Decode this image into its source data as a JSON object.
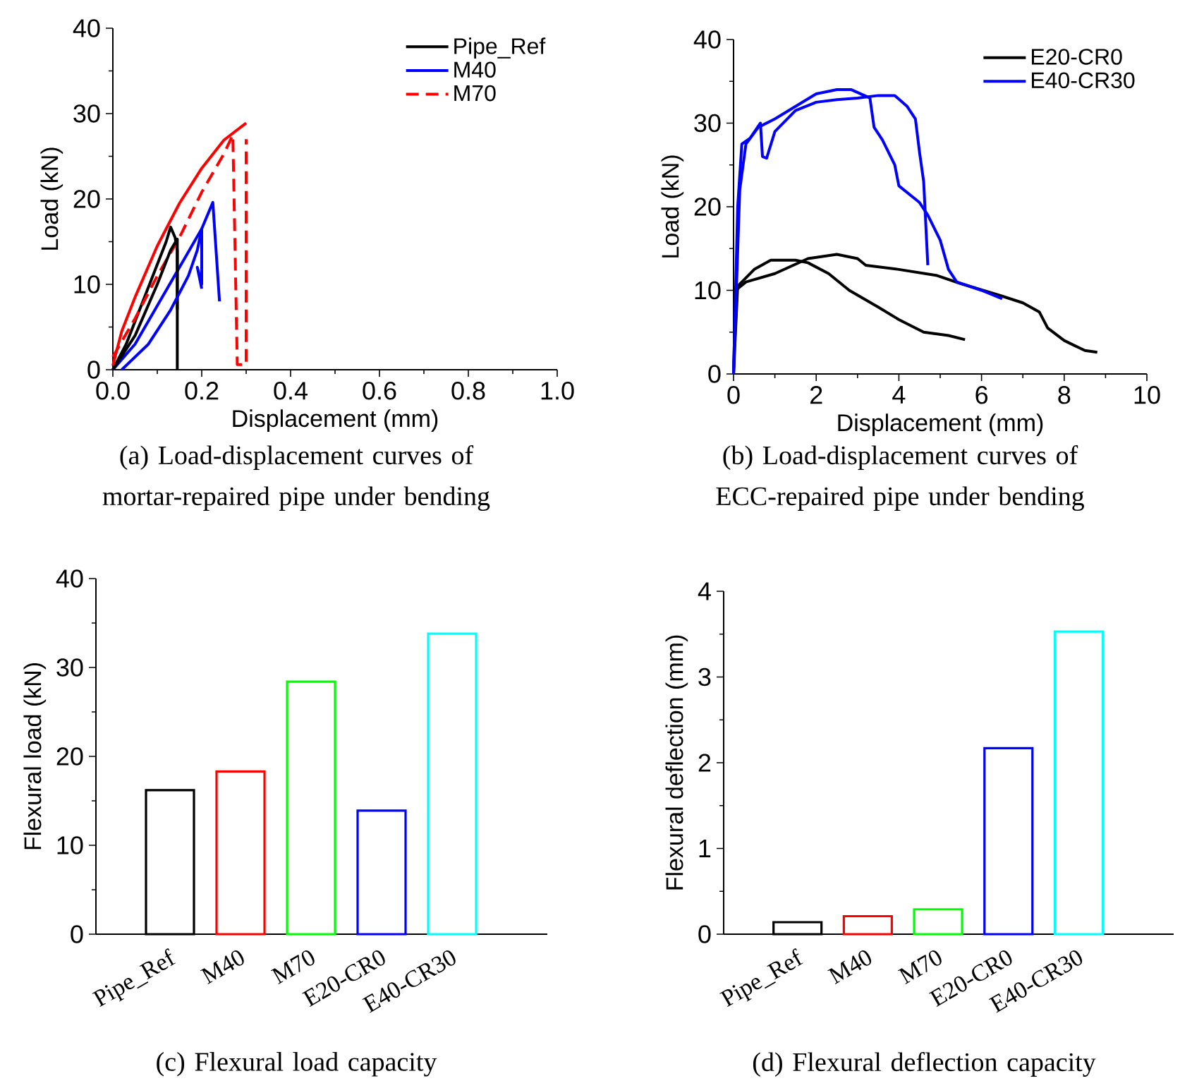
{
  "chart_data": [
    {
      "type": "line",
      "title": "(a) Load-displacement curves of mortar-repaired pipe under bending",
      "xlabel": "Displacement (mm)",
      "ylabel": "Load (kN)",
      "xlim": [
        0,
        1
      ],
      "ylim": [
        0,
        40
      ],
      "xticks": [
        {
          "value": 0,
          "label": "0.0"
        },
        {
          "value": 0.2,
          "label": "0.2"
        },
        {
          "value": 0.4,
          "label": "0.4"
        },
        {
          "value": 0.6,
          "label": "0.6"
        },
        {
          "value": 0.8,
          "label": "0.8"
        },
        {
          "value": 1,
          "label": "1.0"
        }
      ],
      "yticks": [
        0,
        10,
        20,
        30,
        40
      ],
      "legend": "top right",
      "series": [
        {
          "name": "Pipe_Ref",
          "color": "#000000",
          "line_style": "solid",
          "x": [
            0,
            0.03,
            0.06,
            0.09,
            0.12,
            0.13,
            0.14,
            0.145,
            0.145
          ],
          "values": [
            0,
            3,
            7,
            11,
            15,
            16.7,
            15.5,
            14,
            0
          ]
        },
        {
          "name": "M40",
          "color": "#0000ff",
          "line_style": "solid",
          "x": [
            0,
            0.05,
            0.1,
            0.15,
            0.2,
            0.225,
            0.24
          ],
          "values": [
            0,
            3,
            7.5,
            12,
            16.5,
            19.6,
            8
          ]
        },
        {
          "name": "M70",
          "color": "#ff0000",
          "line_style": "dashed",
          "x": [
            0,
            0.05,
            0.1,
            0.15,
            0.2,
            0.25,
            0.27,
            0.28,
            0.3,
            0.3
          ],
          "values": [
            1.5,
            6,
            11,
            15.5,
            20.8,
            25.3,
            27.5,
            0.6,
            0.6,
            27
          ]
        },
        {
          "color": "#000000",
          "line_style": "solid",
          "x": [
            0,
            0.05,
            0.1,
            0.13,
            0.145,
            0.145
          ],
          "values": [
            0,
            4,
            10,
            14,
            15.3,
            7
          ]
        },
        {
          "color": "#0000ff",
          "line_style": "solid",
          "x": [
            0.02,
            0.08,
            0.13,
            0.17,
            0.19,
            0.2,
            0.2,
            0.19,
            0.2
          ],
          "values": [
            0,
            3,
            7,
            11,
            14,
            16.5,
            10,
            12,
            9.5
          ]
        },
        {
          "color": "#ff0000",
          "line_style": "solid",
          "x": [
            0,
            0.02,
            0.05,
            0.1,
            0.15,
            0.2,
            0.25,
            0.3
          ],
          "values": [
            0.5,
            4.5,
            8.5,
            14.5,
            19.5,
            23.6,
            26.9,
            28.9
          ]
        }
      ]
    },
    {
      "type": "line",
      "title": "(b) Load-displacement curves of ECC-repaired pipe under bending",
      "xlabel": "Displacement (mm)",
      "ylabel": "Load (kN)",
      "xlim": [
        0,
        10
      ],
      "ylim": [
        0,
        40
      ],
      "xticks": [
        0,
        2,
        4,
        6,
        8,
        10
      ],
      "yticks": [
        0,
        10,
        20,
        30,
        40
      ],
      "legend": "top right",
      "series": [
        {
          "name": "E20-CR0",
          "color": "#000000",
          "line_style": "solid",
          "x": [
            0,
            0.05,
            0.3,
            1,
            1.8,
            2.5,
            3,
            3.2,
            4,
            4.9,
            5.5,
            6.5,
            7,
            7.4,
            7.6,
            8,
            8.5,
            8.8
          ],
          "values": [
            0,
            10,
            11,
            12,
            13.8,
            14.3,
            13.8,
            13,
            12.5,
            11.8,
            10.8,
            9.3,
            8.5,
            7.4,
            5.5,
            4,
            2.8,
            2.6
          ]
        },
        {
          "name": "E40-CR30",
          "color": "#0000ff",
          "line_style": "solid",
          "x": [
            0,
            0.1,
            0.2,
            0.4,
            0.65,
            0.7,
            0.8,
            1,
            1.5,
            2,
            2.5,
            3,
            3.5,
            3.9,
            4.2,
            4.4,
            4.5,
            4.6,
            4.7
          ],
          "values": [
            0,
            20,
            27.5,
            28.2,
            30,
            26,
            25.8,
            29,
            31.5,
            32.5,
            32.8,
            33,
            33.3,
            33.3,
            32,
            30.5,
            26.5,
            23,
            13
          ]
        },
        {
          "color": "#000000",
          "line_style": "solid",
          "x": [
            0,
            0.1,
            0.5,
            0.9,
            1.5,
            1.8,
            2.3,
            2.8,
            3.5,
            4,
            4.6,
            5.2,
            5.6
          ],
          "values": [
            0,
            10.5,
            12.5,
            13.6,
            13.6,
            13.3,
            12,
            10,
            8,
            6.5,
            5,
            4.6,
            4.1
          ]
        },
        {
          "color": "#0000ff",
          "line_style": "solid",
          "x": [
            0,
            0.15,
            0.3,
            0.6,
            1,
            1.5,
            2,
            2.5,
            2.85,
            3.3,
            3.4,
            3.6,
            3.9,
            4,
            4.5,
            4.7,
            5,
            5.2,
            5.4,
            6,
            6.5
          ],
          "values": [
            0,
            22,
            27.5,
            29.5,
            30.5,
            32,
            33.5,
            34,
            34,
            33,
            29.5,
            28,
            25,
            22.5,
            20.5,
            19,
            16,
            12.5,
            11,
            10,
            9
          ]
        }
      ]
    },
    {
      "type": "bar",
      "title": "(c) Flexural load capacity",
      "ylabel": "Flexural load (kN)",
      "ylim": [
        0,
        40
      ],
      "yticks": [
        0,
        10,
        20,
        30,
        40
      ],
      "categories": [
        "Pipe_Ref",
        "M40",
        "M70",
        "E20-CR0",
        "E40-CR30"
      ],
      "values": [
        16.2,
        18.3,
        28.4,
        13.9,
        33.8
      ],
      "colors": [
        "#000000",
        "#ff0000",
        "#00ff00",
        "#0000ff",
        "#00ffff"
      ]
    },
    {
      "type": "bar",
      "title": "(d) Flexural deflection capacity",
      "ylabel": "Flexural deflection (mm)",
      "ylim": [
        0,
        4
      ],
      "yticks": [
        0,
        1,
        2,
        3,
        4
      ],
      "categories": [
        "Pipe_Ref",
        "M40",
        "M70",
        "E20-CR0",
        "E40-CR30"
      ],
      "values": [
        0.14,
        0.21,
        0.29,
        2.17,
        3.53
      ],
      "colors": [
        "#000000",
        "#ff0000",
        "#00ff00",
        "#0000ff",
        "#00ffff"
      ]
    }
  ]
}
